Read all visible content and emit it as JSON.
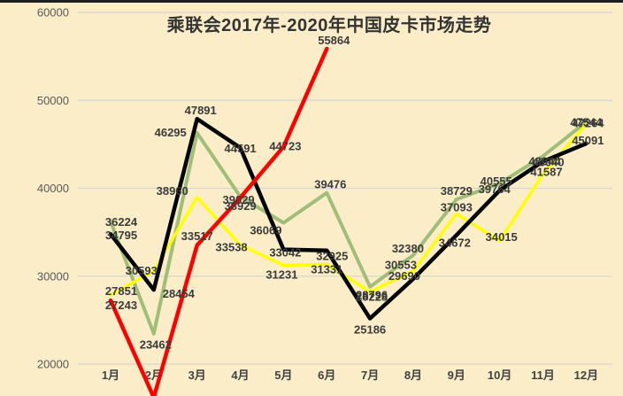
{
  "chart_data": {
    "type": "line",
    "title": "乘联会2017年-2020年中国皮卡市场走势",
    "categories": [
      "1月",
      "2月",
      "3月",
      "4月",
      "5月",
      "6月",
      "7月",
      "8月",
      "9月",
      "10月",
      "11月",
      "12月"
    ],
    "y_axis": {
      "min": 20000,
      "max": 60000,
      "ticks": [
        20000,
        30000,
        40000,
        50000,
        60000
      ]
    },
    "xlabel": "",
    "ylabel": "",
    "grid": true,
    "legend_position": "none",
    "background_color": "#FAEDC8",
    "gridline_color": "#D6D6D6",
    "series": [
      {
        "name": "green-line",
        "color": "#A0BE78",
        "values": [
          36224,
          23462,
          46295,
          39029,
          36069,
          39476,
          28796,
          32380,
          38729,
          40555,
          43644,
          47544
        ]
      },
      {
        "name": "yellow-line",
        "color": "#FFFF00",
        "values": [
          27851,
          30593,
          38960,
          33538,
          31231,
          31331,
          28228,
          30553,
          37093,
          34015,
          41587,
          47264
        ]
      },
      {
        "name": "black-line",
        "color": "#000000",
        "values": [
          34795,
          28454,
          47891,
          44591,
          33042,
          32925,
          25186,
          29690,
          34672,
          39764,
          43040,
          45091
        ]
      },
      {
        "name": "red-line",
        "color": "#FF0000",
        "values": [
          27243,
          null,
          33517,
          38929,
          44723,
          55864,
          null,
          null,
          null,
          null,
          null,
          null
        ],
        "note": "2月 value dips below the visible axis; series ends after 6月"
      }
    ]
  }
}
